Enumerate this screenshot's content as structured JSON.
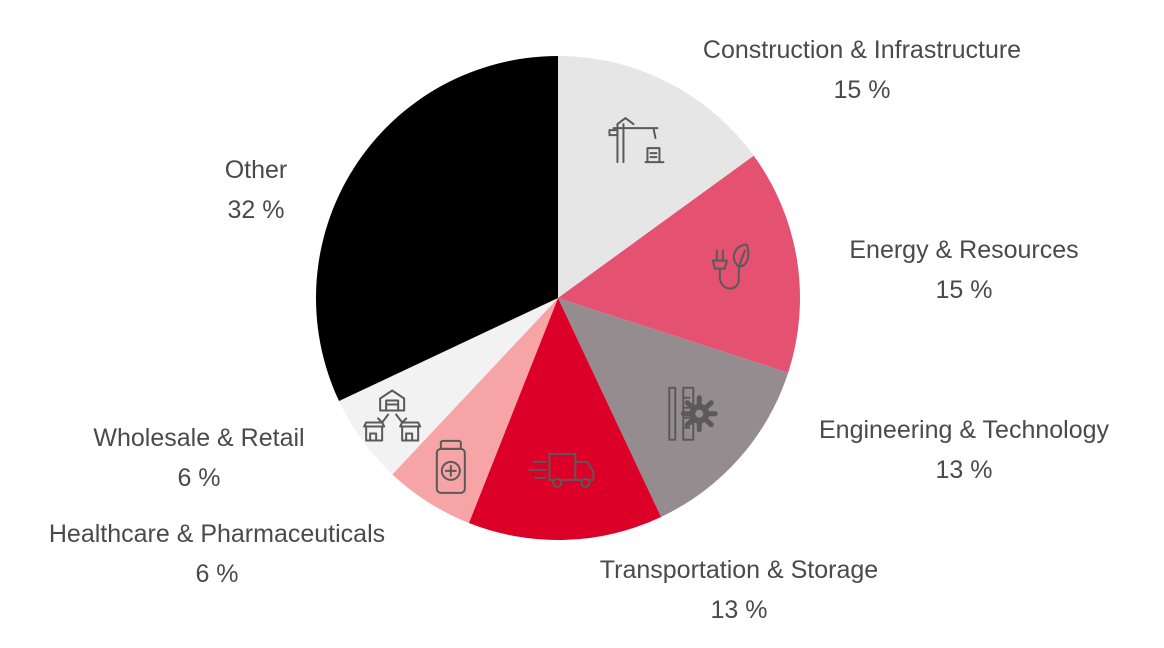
{
  "chart_data": {
    "type": "pie",
    "start_angle_deg": 0,
    "direction": "clockwise",
    "slices": [
      {
        "label": "Construction & Infrastructure",
        "value": 15,
        "value_label": "15 %",
        "color": "#e6e6e6",
        "icon": "construction-crane-icon"
      },
      {
        "label": "Energy & Resources",
        "value": 15,
        "value_label": "15 %",
        "color": "#e45171",
        "icon": "plug-leaf-icon"
      },
      {
        "label": "Engineering & Technology",
        "value": 13,
        "value_label": "13 %",
        "color": "#958c90",
        "icon": "ruler-gear-icon"
      },
      {
        "label": "Transportation & Storage",
        "value": 13,
        "value_label": "13 %",
        "color": "#dc0028",
        "icon": "delivery-truck-icon"
      },
      {
        "label": "Healthcare & Pharmaceuticals",
        "value": 6,
        "value_label": "6 %",
        "color": "#f7a4a6",
        "icon": "medicine-bottle-icon"
      },
      {
        "label": "Wholesale & Retail",
        "value": 6,
        "value_label": "6 %",
        "color": "#f2f2f2",
        "icon": "warehouse-shops-icon"
      },
      {
        "label": "Other",
        "value": 32,
        "value_label": "32 %",
        "color": "#000000",
        "icon": ""
      }
    ]
  }
}
